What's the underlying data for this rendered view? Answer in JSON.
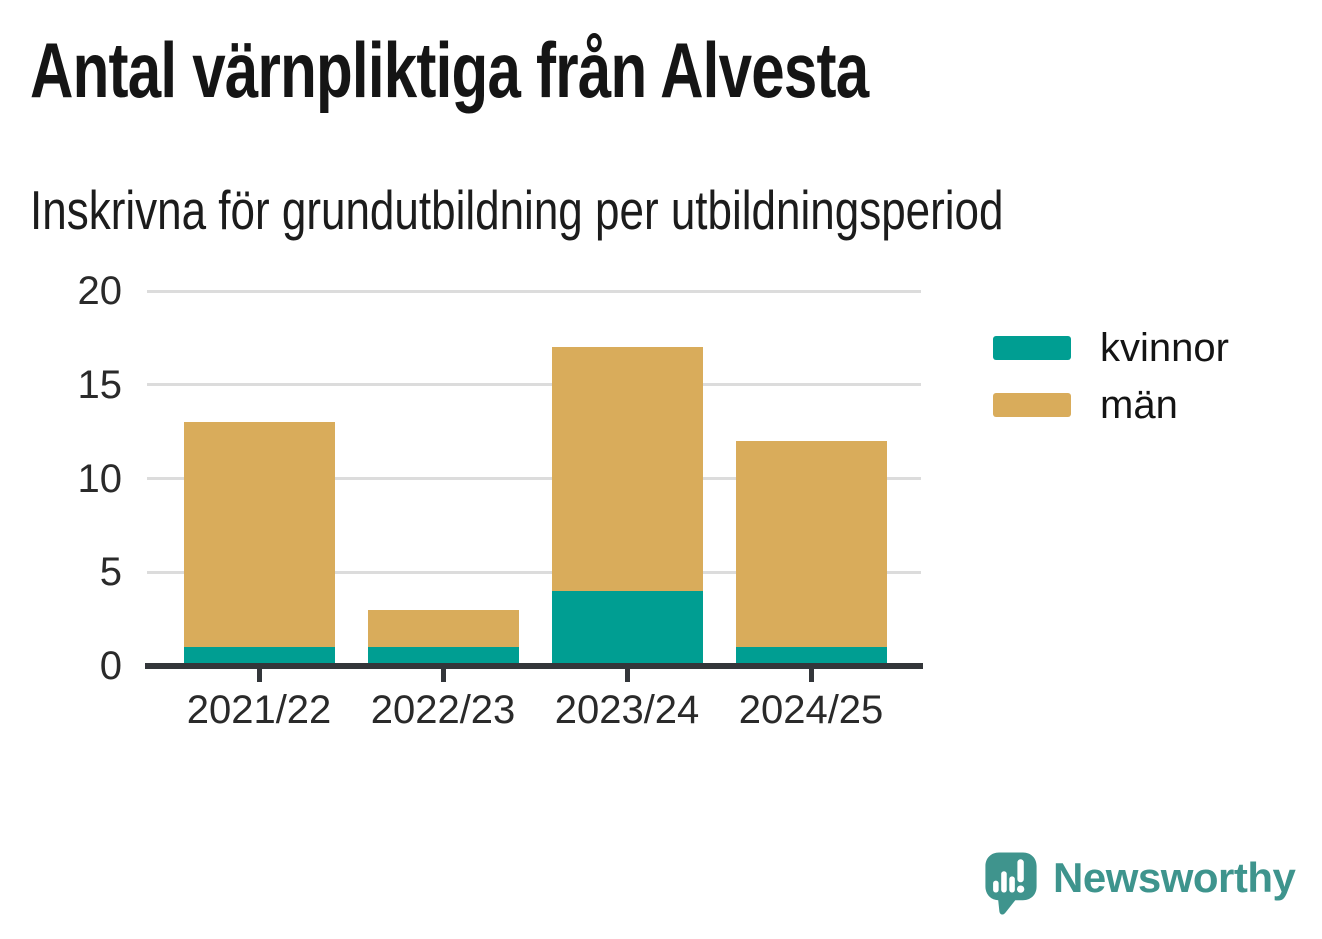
{
  "chart_data": {
    "type": "bar",
    "stacked": true,
    "title": "Antal värnpliktiga från Alvesta",
    "subtitle": "Inskrivna för grundutbildning per utbildningsperiod",
    "categories": [
      "2021/22",
      "2022/23",
      "2023/24",
      "2024/25"
    ],
    "series": [
      {
        "name": "kvinnor",
        "color": "#009E92",
        "values": [
          1,
          1,
          4,
          1
        ]
      },
      {
        "name": "män",
        "color": "#D9AC5B",
        "values": [
          12,
          2,
          13,
          11
        ]
      }
    ],
    "totals": [
      13,
      3,
      17,
      12
    ],
    "xlabel": "",
    "ylabel": "",
    "ylim": [
      0,
      20
    ],
    "yticks": [
      0,
      5,
      10,
      15,
      20
    ],
    "grid": true,
    "legend_position": "right",
    "axis_color": "#33363a",
    "gridline_color": "#dcdcdc"
  },
  "branding": {
    "logo_text": "Newsworthy",
    "logo_color": "#3E948D",
    "logo_icon": "newsworthy-speech-bubble-bar-chart-icon"
  }
}
